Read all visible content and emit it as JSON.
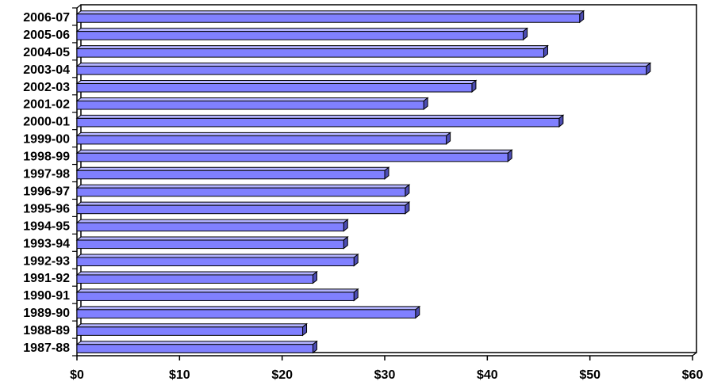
{
  "chart_data": {
    "type": "bar",
    "orientation": "horizontal",
    "title": "",
    "xlabel": "",
    "ylabel": "",
    "categories": [
      "2006-07",
      "2005-06",
      "2004-05",
      "2003-04",
      "2002-03",
      "2001-02",
      "2000-01",
      "1999-00",
      "1998-99",
      "1997-98",
      "1996-97",
      "1995-96",
      "1994-95",
      "1993-94",
      "1992-93",
      "1991-92",
      "1990-91",
      "1989-90",
      "1988-89",
      "1987-88"
    ],
    "values": [
      49.0,
      43.5,
      45.5,
      55.5,
      38.5,
      33.8,
      47.0,
      36.0,
      42.0,
      30.0,
      32.0,
      32.0,
      26.0,
      26.0,
      27.0,
      23.0,
      27.0,
      33.0,
      22.0,
      23.0
    ],
    "xlim": [
      0,
      60
    ],
    "x_ticks": [
      0,
      10,
      20,
      30,
      40,
      50,
      60
    ],
    "x_tick_labels": [
      "$0",
      "$10",
      "$20",
      "$30",
      "$40",
      "$50",
      "$60"
    ],
    "grid": false,
    "legend": "none",
    "bar_color": "#8080ff",
    "bar_top_color": "#b3b3ff",
    "bar_side_color": "#4d4db3",
    "bar_stroke": "#000000"
  }
}
